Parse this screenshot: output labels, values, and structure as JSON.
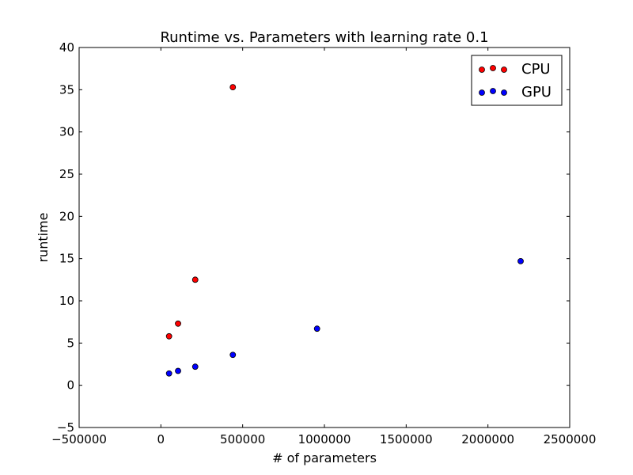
{
  "chart_data": {
    "type": "scatter",
    "title": "Runtime vs. Parameters with learning rate 0.1",
    "xlabel": "# of parameters",
    "ylabel": "runtime",
    "xlim": [
      -500000,
      2500000
    ],
    "ylim": [
      -5,
      40
    ],
    "x_ticks": [
      -500000,
      0,
      500000,
      1000000,
      1500000,
      2000000,
      2500000
    ],
    "x_tick_labels": [
      "−500000",
      "0",
      "500000",
      "1000000",
      "1500000",
      "2000000",
      "2500000"
    ],
    "y_ticks": [
      -5,
      0,
      5,
      10,
      15,
      20,
      25,
      30,
      35,
      40
    ],
    "y_tick_labels": [
      "−5",
      "0",
      "5",
      "10",
      "15",
      "20",
      "25",
      "30",
      "35",
      "40"
    ],
    "grid": false,
    "legend_position": "top-right",
    "series": [
      {
        "name": "CPU",
        "color": "#ff0000",
        "points": [
          {
            "x": 50000,
            "y": 5.8
          },
          {
            "x": 105000,
            "y": 7.3
          },
          {
            "x": 210000,
            "y": 12.5
          },
          {
            "x": 440000,
            "y": 35.3
          }
        ]
      },
      {
        "name": "GPU",
        "color": "#0000ff",
        "points": [
          {
            "x": 50000,
            "y": 1.4
          },
          {
            "x": 105000,
            "y": 1.7
          },
          {
            "x": 210000,
            "y": 2.2
          },
          {
            "x": 440000,
            "y": 3.6
          },
          {
            "x": 955000,
            "y": 6.7
          },
          {
            "x": 2200000,
            "y": 14.7
          }
        ]
      }
    ]
  }
}
